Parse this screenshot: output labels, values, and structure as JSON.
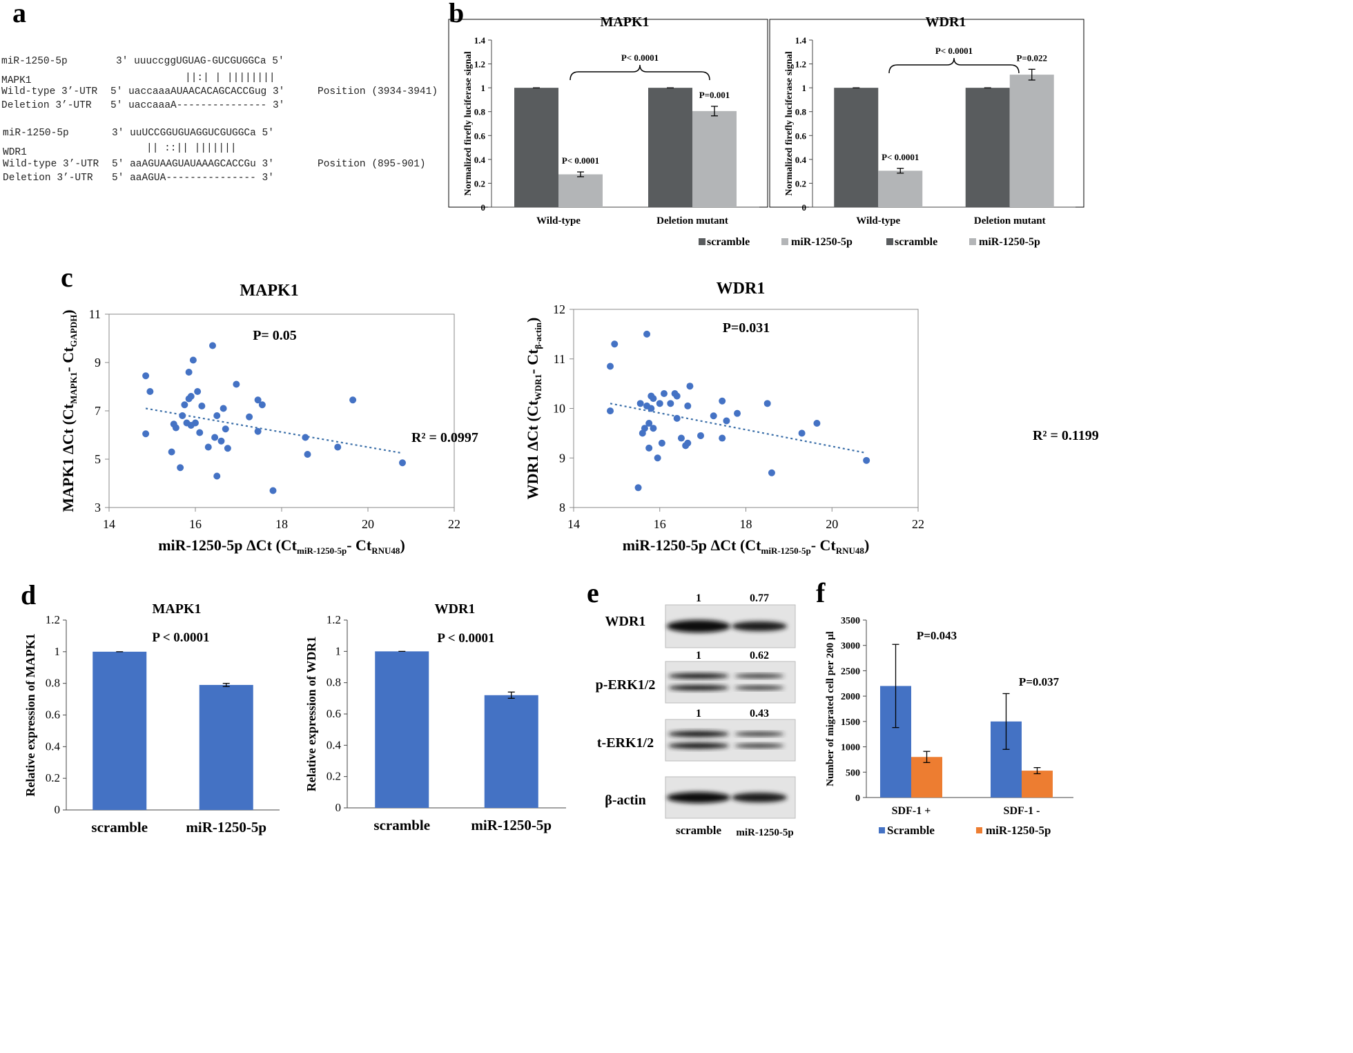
{
  "panels": {
    "a": {
      "letter": "a",
      "lines_mapk1": [
        "miR-1250-5p",
        "3'  uuuccggUGUAG-GUCGUGGCa 5'",
        "||:| |  ||||||||",
        "MAPK1",
        "Wild-type 3’-UTR",
        "5'  uaccaaaAUAACACAGCACCGug 3'",
        "Position (3934-3941)",
        "Deletion  3’-UTR",
        "5'  uaccaaaA--------------- 3'"
      ],
      "lines_wdr1": [
        "miR-1250-5p",
        "3'  uuUCCGGUGUAGGUCGUGGCa 5'",
        "||   ::||  |||||||",
        "WDR1",
        "Wild-type 3’-UTR",
        "5'  aaAGUAAGUAUAAAGCACCGu 3'",
        "Position (895-901)",
        "Deletion  3’-UTR",
        "5'  aaAGUA--------------- 3'"
      ]
    },
    "b": {
      "letter": "b"
    },
    "c": {
      "letter": "c"
    },
    "d": {
      "letter": "d"
    },
    "e": {
      "letter": "e",
      "rows": [
        {
          "label": "WDR1",
          "values": [
            "1",
            "0.77"
          ]
        },
        {
          "label": "p-ERK1/2",
          "values": [
            "1",
            "0.62"
          ]
        },
        {
          "label": "t-ERK1/2",
          "values": [
            "1",
            "0.43"
          ]
        },
        {
          "label": "β-actin",
          "values": [
            "",
            ""
          ]
        }
      ],
      "xlabels": [
        "scramble",
        "miR-1250-5p"
      ]
    },
    "f": {
      "letter": "f"
    }
  },
  "colors": {
    "scramble_dark": "#595c5e",
    "mir_light": "#b3b5b7",
    "blue": "#4472c4",
    "orange": "#ed7d31",
    "trend": "#3a6ea8"
  },
  "chart_data": [
    {
      "id": "b1",
      "type": "bar",
      "title": "MAPK1",
      "categories": [
        "Wild-type",
        "Deletion mutant"
      ],
      "series": [
        {
          "name": "scramble",
          "values": [
            1.0,
            1.0
          ],
          "errors": [
            0.0,
            0.0
          ]
        },
        {
          "name": "miR-1250-5p",
          "values": [
            0.275,
            0.805
          ],
          "errors": [
            0.02,
            0.04
          ]
        }
      ],
      "ylabel": "Normalized firefly luciferase signal",
      "ylim": [
        0,
        1.4
      ],
      "yticks": [
        "0",
        "0.2",
        "0.4",
        "0.6",
        "0.8",
        "1",
        "1.2",
        "1.4"
      ],
      "annotations": [
        "P< 0.0001",
        "P=0.001",
        "P< 0.0001"
      ],
      "legend": [
        "scramble",
        "miR-1250-5p"
      ]
    },
    {
      "id": "b2",
      "type": "bar",
      "title": "WDR1",
      "categories": [
        "Wild-type",
        "Deletion mutant"
      ],
      "series": [
        {
          "name": "scramble",
          "values": [
            1.0,
            1.0
          ],
          "errors": [
            0.0,
            0.0
          ]
        },
        {
          "name": "miR-1250-5p",
          "values": [
            0.305,
            1.11
          ],
          "errors": [
            0.02,
            0.045
          ]
        }
      ],
      "ylabel": "Normalized firefly luciferase signal",
      "ylim": [
        0,
        1.4
      ],
      "yticks": [
        "0",
        "0.2",
        "0.4",
        "0.6",
        "0.8",
        "1",
        "1.2",
        "1.4"
      ],
      "annotations": [
        "P< 0.0001",
        "P=0.022",
        "P< 0.0001"
      ],
      "legend": [
        "scramble",
        "miR-1250-5p"
      ]
    },
    {
      "id": "c1",
      "type": "scatter",
      "title": "MAPK1",
      "xlabel": "miR-1250-5p ΔCt  (Ct",
      "xlabel_sub1": "miR-1250-5p",
      "xlabel_mid": "- Ct",
      "xlabel_sub2": "RNU48",
      "xlabel_end": ")",
      "ylabel": "MAPK1 ΔCt  (Ct",
      "ylabel_sub1": "MAPK1",
      "ylabel_mid": "- Ct",
      "ylabel_sub2": "GAPDH",
      "ylabel_end": ")",
      "xlim": [
        14,
        22
      ],
      "ylim": [
        3,
        11
      ],
      "xticks": [
        "14",
        "16",
        "18",
        "20",
        "22"
      ],
      "yticks": [
        "3",
        "5",
        "7",
        "9",
        "11"
      ],
      "points": [
        [
          14.85,
          8.45
        ],
        [
          14.85,
          6.05
        ],
        [
          14.95,
          7.8
        ],
        [
          15.45,
          5.3
        ],
        [
          15.5,
          6.45
        ],
        [
          15.55,
          6.3
        ],
        [
          15.65,
          4.65
        ],
        [
          15.7,
          6.8
        ],
        [
          15.75,
          7.25
        ],
        [
          15.85,
          8.6
        ],
        [
          15.85,
          7.5
        ],
        [
          15.95,
          9.1
        ],
        [
          15.9,
          7.6
        ],
        [
          15.9,
          6.4
        ],
        [
          16.0,
          6.5
        ],
        [
          15.8,
          6.5
        ],
        [
          16.05,
          7.8
        ],
        [
          16.1,
          6.1
        ],
        [
          16.15,
          7.2
        ],
        [
          16.3,
          5.5
        ],
        [
          16.45,
          5.9
        ],
        [
          16.4,
          9.7
        ],
        [
          16.5,
          6.8
        ],
        [
          16.5,
          4.3
        ],
        [
          16.6,
          5.75
        ],
        [
          16.65,
          7.1
        ],
        [
          16.7,
          6.25
        ],
        [
          16.75,
          5.45
        ],
        [
          16.95,
          8.1
        ],
        [
          17.25,
          6.75
        ],
        [
          17.45,
          7.45
        ],
        [
          17.45,
          6.15
        ],
        [
          17.55,
          7.25
        ],
        [
          17.8,
          3.7
        ],
        [
          18.55,
          5.9
        ],
        [
          18.6,
          5.2
        ],
        [
          19.3,
          5.5
        ],
        [
          19.65,
          7.45
        ],
        [
          20.8,
          4.85
        ]
      ],
      "trendline": {
        "x": [
          14.85,
          20.8
        ],
        "y": [
          7.1,
          5.25
        ]
      },
      "p_value": "P= 0.05",
      "r2": "R² = 0.0997"
    },
    {
      "id": "c2",
      "type": "scatter",
      "title": "WDR1",
      "xlabel": "miR-1250-5p ΔCt  (Ct",
      "xlabel_sub1": "miR-1250-5p",
      "xlabel_mid": "- Ct",
      "xlabel_sub2": "RNU48",
      "xlabel_end": ")",
      "ylabel": "WDR1 ΔCt  (Ct",
      "ylabel_sub1": "WDR1",
      "ylabel_mid": "- Ct",
      "ylabel_sub2": "β-actin",
      "ylabel_end": ")",
      "xlim": [
        14,
        22
      ],
      "ylim": [
        8,
        12
      ],
      "xticks": [
        "14",
        "16",
        "18",
        "20",
        "22"
      ],
      "yticks": [
        "8",
        "9",
        "10",
        "11",
        "12"
      ],
      "points": [
        [
          14.85,
          10.85
        ],
        [
          14.85,
          9.95
        ],
        [
          14.95,
          11.3
        ],
        [
          15.5,
          8.4
        ],
        [
          15.55,
          10.1
        ],
        [
          15.6,
          9.5
        ],
        [
          15.65,
          9.6
        ],
        [
          15.7,
          11.5
        ],
        [
          15.7,
          10.05
        ],
        [
          15.75,
          9.7
        ],
        [
          15.75,
          9.2
        ],
        [
          15.8,
          10.25
        ],
        [
          15.8,
          10.0
        ],
        [
          15.85,
          10.2
        ],
        [
          15.85,
          9.6
        ],
        [
          15.95,
          9.0
        ],
        [
          16.0,
          10.1
        ],
        [
          16.05,
          9.3
        ],
        [
          16.1,
          10.3
        ],
        [
          16.25,
          10.1
        ],
        [
          16.35,
          10.3
        ],
        [
          16.4,
          10.25
        ],
        [
          16.4,
          9.8
        ],
        [
          16.5,
          9.4
        ],
        [
          16.6,
          9.25
        ],
        [
          16.65,
          10.05
        ],
        [
          16.65,
          9.3
        ],
        [
          16.7,
          10.45
        ],
        [
          16.95,
          9.45
        ],
        [
          17.25,
          9.85
        ],
        [
          17.45,
          9.4
        ],
        [
          17.45,
          10.15
        ],
        [
          17.55,
          9.75
        ],
        [
          17.8,
          9.9
        ],
        [
          18.5,
          10.1
        ],
        [
          18.6,
          8.7
        ],
        [
          19.3,
          9.5
        ],
        [
          19.65,
          9.7
        ],
        [
          20.8,
          8.95
        ]
      ],
      "trendline": {
        "x": [
          14.85,
          20.8
        ],
        "y": [
          10.1,
          9.1
        ]
      },
      "p_value": "P=0.031",
      "r2": "R² = 0.1199"
    },
    {
      "id": "d1",
      "type": "bar",
      "title": "MAPK1",
      "categories": [
        "scramble",
        "miR-1250-5p"
      ],
      "values": [
        1.0,
        0.79
      ],
      "errors": [
        0.0,
        0.01
      ],
      "ylabel": "Relative expression of MAPK1",
      "ylim": [
        0,
        1.2
      ],
      "yticks": [
        "0",
        "0.2",
        "0.4",
        "0.6",
        "0.8",
        "1",
        "1.2"
      ],
      "p_value": "P < 0.0001"
    },
    {
      "id": "d2",
      "type": "bar",
      "title": "WDR1",
      "categories": [
        "scramble",
        "miR-1250-5p"
      ],
      "values": [
        1.0,
        0.72
      ],
      "errors": [
        0.0,
        0.02
      ],
      "ylabel": "Relative expression of WDR1",
      "ylim": [
        0,
        1.2
      ],
      "yticks": [
        "0",
        "0.2",
        "0.4",
        "0.6",
        "0.8",
        "1",
        "1.2"
      ],
      "p_value": "P < 0.0001"
    },
    {
      "id": "f",
      "type": "bar",
      "title": "",
      "categories": [
        "SDF-1 +",
        "SDF-1 -"
      ],
      "series": [
        {
          "name": "Scramble",
          "values": [
            2200,
            1500
          ],
          "errors": [
            820,
            550
          ]
        },
        {
          "name": "miR-1250-5p",
          "values": [
            800,
            530
          ],
          "errors": [
            110,
            60
          ]
        }
      ],
      "ylabel": "Number of migrated cell per 200 µl",
      "ylim": [
        0,
        3500
      ],
      "yticks": [
        "0",
        "500",
        "1000",
        "1500",
        "2000",
        "2500",
        "3000",
        "3500"
      ],
      "annotations": [
        "P=0.043",
        "P=0.037"
      ],
      "legend": [
        "Scramble",
        "miR-1250-5p"
      ]
    }
  ]
}
